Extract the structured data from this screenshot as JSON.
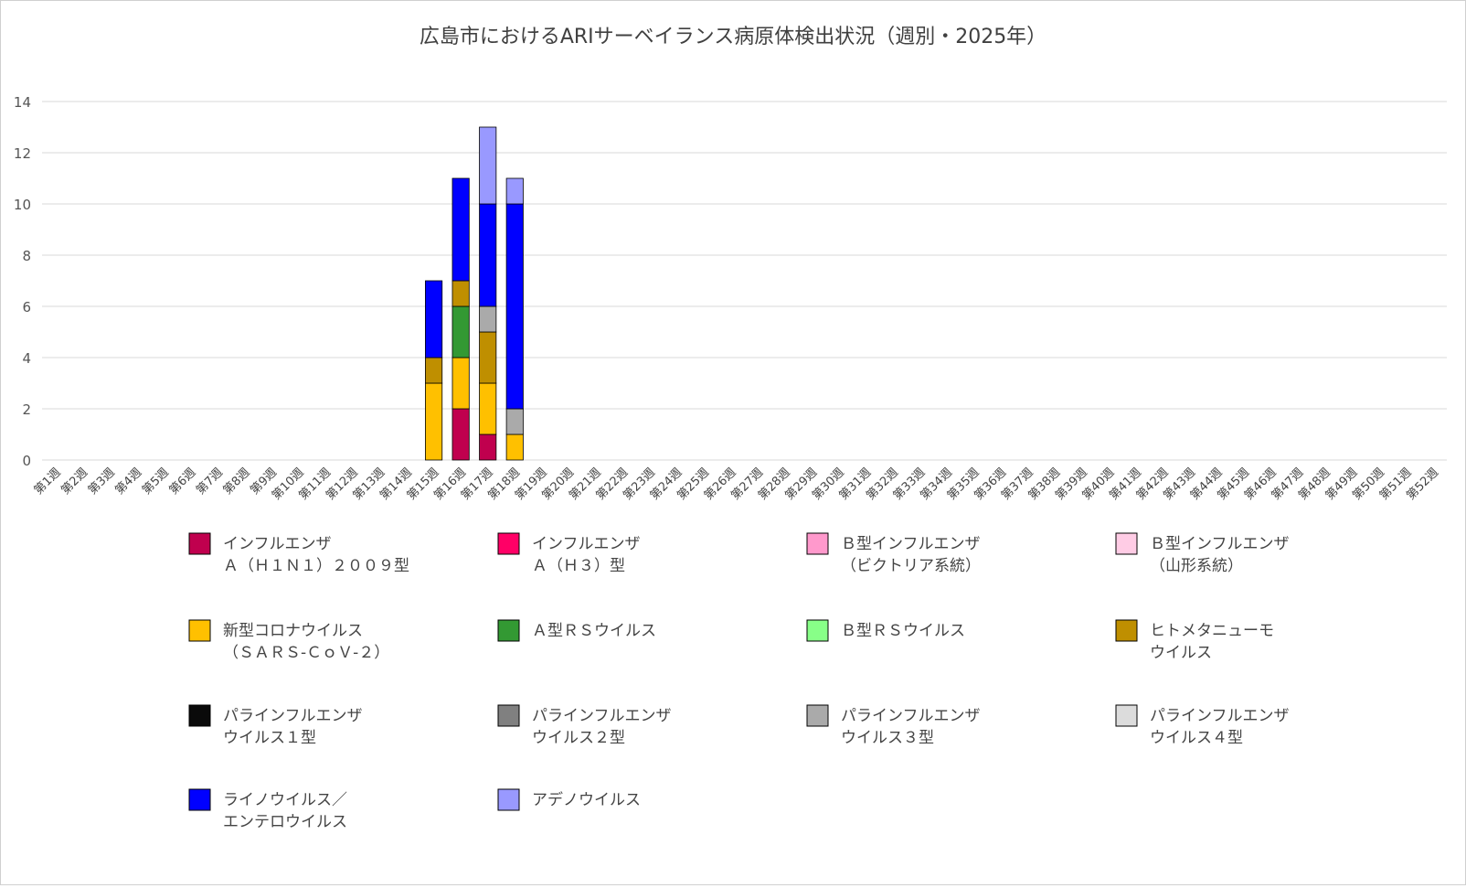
{
  "chart_data": {
    "type": "bar",
    "stacked": true,
    "title": "広島市におけるARIサーベイランス病原体検出状況（週別・2025年）",
    "xlabel": "",
    "ylabel": "",
    "ylim": [
      0,
      14
    ],
    "yticks": [
      0,
      2,
      4,
      6,
      8,
      10,
      12,
      14
    ],
    "grid": true,
    "legend_position": "bottom",
    "categories": [
      "第1週",
      "第2週",
      "第3週",
      "第4週",
      "第5週",
      "第6週",
      "第7週",
      "第8週",
      "第9週",
      "第10週",
      "第11週",
      "第12週",
      "第13週",
      "第14週",
      "第15週",
      "第16週",
      "第17週",
      "第18週",
      "第19週",
      "第20週",
      "第21週",
      "第22週",
      "第23週",
      "第24週",
      "第25週",
      "第26週",
      "第27週",
      "第28週",
      "第29週",
      "第30週",
      "第31週",
      "第32週",
      "第33週",
      "第34週",
      "第35週",
      "第36週",
      "第37週",
      "第38週",
      "第39週",
      "第40週",
      "第41週",
      "第42週",
      "第43週",
      "第44週",
      "第45週",
      "第46週",
      "第47週",
      "第48週",
      "第49週",
      "第50週",
      "第51週",
      "第52週"
    ],
    "series": [
      {
        "name": "インフルエンザ\nＡ（Ｈ１Ｎ１）２００９型",
        "color": "#C0004E",
        "values": [
          0,
          0,
          0,
          0,
          0,
          0,
          0,
          0,
          0,
          0,
          0,
          0,
          0,
          0,
          0,
          2,
          1,
          0,
          0,
          0,
          0,
          0,
          0,
          0,
          0,
          0,
          0,
          0,
          0,
          0,
          0,
          0,
          0,
          0,
          0,
          0,
          0,
          0,
          0,
          0,
          0,
          0,
          0,
          0,
          0,
          0,
          0,
          0,
          0,
          0,
          0,
          0
        ]
      },
      {
        "name": "インフルエンザ\nＡ（Ｈ３）型",
        "color": "#FF0066",
        "values": [
          0,
          0,
          0,
          0,
          0,
          0,
          0,
          0,
          0,
          0,
          0,
          0,
          0,
          0,
          0,
          0,
          0,
          0,
          0,
          0,
          0,
          0,
          0,
          0,
          0,
          0,
          0,
          0,
          0,
          0,
          0,
          0,
          0,
          0,
          0,
          0,
          0,
          0,
          0,
          0,
          0,
          0,
          0,
          0,
          0,
          0,
          0,
          0,
          0,
          0,
          0,
          0
        ]
      },
      {
        "name": "Ｂ型インフルエンザ\n（ビクトリア系統）",
        "color": "#FF99CC",
        "values": [
          0,
          0,
          0,
          0,
          0,
          0,
          0,
          0,
          0,
          0,
          0,
          0,
          0,
          0,
          0,
          0,
          0,
          0,
          0,
          0,
          0,
          0,
          0,
          0,
          0,
          0,
          0,
          0,
          0,
          0,
          0,
          0,
          0,
          0,
          0,
          0,
          0,
          0,
          0,
          0,
          0,
          0,
          0,
          0,
          0,
          0,
          0,
          0,
          0,
          0,
          0,
          0
        ]
      },
      {
        "name": "Ｂ型インフルエンザ\n（山形系統）",
        "color": "#FFCCE5",
        "values": [
          0,
          0,
          0,
          0,
          0,
          0,
          0,
          0,
          0,
          0,
          0,
          0,
          0,
          0,
          0,
          0,
          0,
          0,
          0,
          0,
          0,
          0,
          0,
          0,
          0,
          0,
          0,
          0,
          0,
          0,
          0,
          0,
          0,
          0,
          0,
          0,
          0,
          0,
          0,
          0,
          0,
          0,
          0,
          0,
          0,
          0,
          0,
          0,
          0,
          0,
          0,
          0
        ]
      },
      {
        "name": "新型コロナウイルス\n（ＳＡＲＳ-ＣｏＶ-２）",
        "color": "#FFC000",
        "values": [
          0,
          0,
          0,
          0,
          0,
          0,
          0,
          0,
          0,
          0,
          0,
          0,
          0,
          0,
          3,
          2,
          2,
          1,
          0,
          0,
          0,
          0,
          0,
          0,
          0,
          0,
          0,
          0,
          0,
          0,
          0,
          0,
          0,
          0,
          0,
          0,
          0,
          0,
          0,
          0,
          0,
          0,
          0,
          0,
          0,
          0,
          0,
          0,
          0,
          0,
          0,
          0
        ]
      },
      {
        "name": "Ａ型ＲＳウイルス",
        "color": "#339933",
        "values": [
          0,
          0,
          0,
          0,
          0,
          0,
          0,
          0,
          0,
          0,
          0,
          0,
          0,
          0,
          0,
          2,
          0,
          0,
          0,
          0,
          0,
          0,
          0,
          0,
          0,
          0,
          0,
          0,
          0,
          0,
          0,
          0,
          0,
          0,
          0,
          0,
          0,
          0,
          0,
          0,
          0,
          0,
          0,
          0,
          0,
          0,
          0,
          0,
          0,
          0,
          0,
          0
        ]
      },
      {
        "name": "Ｂ型ＲＳウイルス",
        "color": "#88FF88",
        "values": [
          0,
          0,
          0,
          0,
          0,
          0,
          0,
          0,
          0,
          0,
          0,
          0,
          0,
          0,
          0,
          0,
          0,
          0,
          0,
          0,
          0,
          0,
          0,
          0,
          0,
          0,
          0,
          0,
          0,
          0,
          0,
          0,
          0,
          0,
          0,
          0,
          0,
          0,
          0,
          0,
          0,
          0,
          0,
          0,
          0,
          0,
          0,
          0,
          0,
          0,
          0,
          0
        ]
      },
      {
        "name": "ヒトメタニューモ\nウイルス",
        "color": "#BF8F00",
        "values": [
          0,
          0,
          0,
          0,
          0,
          0,
          0,
          0,
          0,
          0,
          0,
          0,
          0,
          0,
          1,
          1,
          2,
          0,
          0,
          0,
          0,
          0,
          0,
          0,
          0,
          0,
          0,
          0,
          0,
          0,
          0,
          0,
          0,
          0,
          0,
          0,
          0,
          0,
          0,
          0,
          0,
          0,
          0,
          0,
          0,
          0,
          0,
          0,
          0,
          0,
          0,
          0
        ]
      },
      {
        "name": "パラインフルエンザ\nウイルス１型",
        "color": "#0A0A0A",
        "values": [
          0,
          0,
          0,
          0,
          0,
          0,
          0,
          0,
          0,
          0,
          0,
          0,
          0,
          0,
          0,
          0,
          0,
          0,
          0,
          0,
          0,
          0,
          0,
          0,
          0,
          0,
          0,
          0,
          0,
          0,
          0,
          0,
          0,
          0,
          0,
          0,
          0,
          0,
          0,
          0,
          0,
          0,
          0,
          0,
          0,
          0,
          0,
          0,
          0,
          0,
          0,
          0
        ]
      },
      {
        "name": "パラインフルエンザ\nウイルス２型",
        "color": "#808080",
        "values": [
          0,
          0,
          0,
          0,
          0,
          0,
          0,
          0,
          0,
          0,
          0,
          0,
          0,
          0,
          0,
          0,
          0,
          0,
          0,
          0,
          0,
          0,
          0,
          0,
          0,
          0,
          0,
          0,
          0,
          0,
          0,
          0,
          0,
          0,
          0,
          0,
          0,
          0,
          0,
          0,
          0,
          0,
          0,
          0,
          0,
          0,
          0,
          0,
          0,
          0,
          0,
          0
        ]
      },
      {
        "name": "パラインフルエンザ\nウイルス３型",
        "color": "#AAAAAA",
        "values": [
          0,
          0,
          0,
          0,
          0,
          0,
          0,
          0,
          0,
          0,
          0,
          0,
          0,
          0,
          0,
          0,
          1,
          1,
          0,
          0,
          0,
          0,
          0,
          0,
          0,
          0,
          0,
          0,
          0,
          0,
          0,
          0,
          0,
          0,
          0,
          0,
          0,
          0,
          0,
          0,
          0,
          0,
          0,
          0,
          0,
          0,
          0,
          0,
          0,
          0,
          0,
          0
        ]
      },
      {
        "name": "パラインフルエンザ\nウイルス４型",
        "color": "#DCDCDC",
        "values": [
          0,
          0,
          0,
          0,
          0,
          0,
          0,
          0,
          0,
          0,
          0,
          0,
          0,
          0,
          0,
          0,
          0,
          0,
          0,
          0,
          0,
          0,
          0,
          0,
          0,
          0,
          0,
          0,
          0,
          0,
          0,
          0,
          0,
          0,
          0,
          0,
          0,
          0,
          0,
          0,
          0,
          0,
          0,
          0,
          0,
          0,
          0,
          0,
          0,
          0,
          0,
          0
        ]
      },
      {
        "name": "ライノウイルス／\nエンテロウイルス",
        "color": "#0000FF",
        "values": [
          0,
          0,
          0,
          0,
          0,
          0,
          0,
          0,
          0,
          0,
          0,
          0,
          0,
          0,
          3,
          4,
          4,
          8,
          0,
          0,
          0,
          0,
          0,
          0,
          0,
          0,
          0,
          0,
          0,
          0,
          0,
          0,
          0,
          0,
          0,
          0,
          0,
          0,
          0,
          0,
          0,
          0,
          0,
          0,
          0,
          0,
          0,
          0,
          0,
          0,
          0,
          0
        ]
      },
      {
        "name": "アデノウイルス",
        "color": "#9999FF",
        "values": [
          0,
          0,
          0,
          0,
          0,
          0,
          0,
          0,
          0,
          0,
          0,
          0,
          0,
          0,
          0,
          0,
          3,
          1,
          0,
          0,
          0,
          0,
          0,
          0,
          0,
          0,
          0,
          0,
          0,
          0,
          0,
          0,
          0,
          0,
          0,
          0,
          0,
          0,
          0,
          0,
          0,
          0,
          0,
          0,
          0,
          0,
          0,
          0,
          0,
          0,
          0,
          0
        ]
      }
    ]
  }
}
